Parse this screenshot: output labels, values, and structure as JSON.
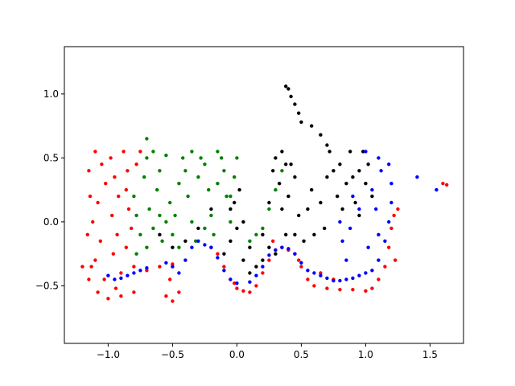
{
  "chart_data": {
    "type": "scatter",
    "title": "",
    "xlabel": "",
    "ylabel": "",
    "xlim": [
      -1.34,
      1.76
    ],
    "ylim": [
      -0.95,
      1.37
    ],
    "x_ticks": [
      -1.0,
      -0.5,
      0.0,
      0.5,
      1.0,
      1.5
    ],
    "x_tick_labels": [
      "−1.0",
      "−0.5",
      "0.0",
      "0.5",
      "1.0",
      "1.5"
    ],
    "y_ticks": [
      -0.5,
      0.0,
      0.5,
      1.0
    ],
    "y_tick_labels": [
      "−0.5",
      "0.0",
      "0.5",
      "1.0"
    ],
    "grid": false,
    "legend": "none",
    "series": [
      {
        "color": "#ff0000",
        "points": [
          [
            -1.1,
            0.55
          ],
          [
            -1.05,
            0.45
          ],
          [
            -1.02,
            0.3
          ],
          [
            -1.08,
            0.15
          ],
          [
            -1.12,
            0.0
          ],
          [
            -1.06,
            -0.15
          ],
          [
            -1.1,
            -0.3
          ],
          [
            -1.03,
            -0.45
          ],
          [
            -1.08,
            -0.55
          ],
          [
            -0.98,
            0.5
          ],
          [
            -0.95,
            0.35
          ],
          [
            -0.92,
            0.2
          ],
          [
            -0.97,
            0.05
          ],
          [
            -0.93,
            -0.1
          ],
          [
            -0.96,
            -0.25
          ],
          [
            -0.9,
            -0.4
          ],
          [
            -0.94,
            -0.52
          ],
          [
            -0.88,
            0.55
          ],
          [
            -0.85,
            0.4
          ],
          [
            -0.86,
            0.25
          ],
          [
            -0.84,
            0.1
          ],
          [
            -0.82,
            -0.05
          ],
          [
            -0.86,
            -0.2
          ],
          [
            -0.8,
            -0.35
          ],
          [
            -0.75,
            0.55
          ],
          [
            -0.78,
            0.45
          ],
          [
            -0.7,
            -0.38
          ],
          [
            -0.6,
            -0.35
          ],
          [
            -0.5,
            -0.33
          ],
          [
            -0.52,
            -0.45
          ],
          [
            -0.55,
            -0.58
          ],
          [
            -0.5,
            -0.62
          ],
          [
            -0.45,
            -0.55
          ],
          [
            -1.15,
            0.4
          ],
          [
            -1.14,
            0.2
          ],
          [
            -1.16,
            -0.1
          ],
          [
            -1.13,
            -0.35
          ],
          [
            -1.2,
            -0.35
          ],
          [
            -1.15,
            -0.45
          ],
          [
            -1.0,
            -0.6
          ],
          [
            -0.9,
            -0.58
          ],
          [
            -0.8,
            -0.55
          ],
          [
            -0.2,
            -0.2
          ],
          [
            -0.1,
            -0.35
          ],
          [
            -0.05,
            -0.45
          ],
          [
            0.0,
            -0.52
          ],
          [
            0.05,
            -0.54
          ],
          [
            0.1,
            -0.55
          ],
          [
            0.15,
            -0.5
          ],
          [
            0.2,
            -0.4
          ],
          [
            0.25,
            -0.3
          ],
          [
            0.3,
            -0.22
          ],
          [
            0.35,
            -0.2
          ],
          [
            0.4,
            -0.22
          ],
          [
            0.45,
            -0.25
          ],
          [
            0.5,
            -0.35
          ],
          [
            0.55,
            -0.45
          ],
          [
            0.6,
            -0.5
          ],
          [
            0.7,
            -0.52
          ],
          [
            0.8,
            -0.53
          ],
          [
            0.9,
            -0.53
          ],
          [
            1.0,
            -0.54
          ],
          [
            1.05,
            -0.52
          ],
          [
            1.1,
            -0.45
          ],
          [
            1.15,
            -0.35
          ],
          [
            1.18,
            -0.2
          ],
          [
            1.2,
            -0.05
          ],
          [
            1.22,
            0.05
          ],
          [
            1.25,
            0.1
          ],
          [
            1.23,
            -0.3
          ],
          [
            0.65,
            -0.4
          ],
          [
            0.75,
            -0.45
          ],
          [
            1.6,
            0.3
          ],
          [
            1.63,
            0.29
          ],
          [
            -0.02,
            -0.48
          ],
          [
            -0.15,
            -0.25
          ],
          [
            0.28,
            -0.15
          ],
          [
            0.48,
            -0.3
          ]
        ]
      },
      {
        "color": "#008000",
        "points": [
          [
            -0.8,
            0.2
          ],
          [
            -0.78,
            0.05
          ],
          [
            -0.75,
            -0.1
          ],
          [
            -0.72,
            0.35
          ],
          [
            -0.7,
            0.5
          ],
          [
            -0.7,
            0.65
          ],
          [
            -0.68,
            0.1
          ],
          [
            -0.65,
            -0.05
          ],
          [
            -0.62,
            0.25
          ],
          [
            -0.6,
            0.4
          ],
          [
            -0.58,
            -0.15
          ],
          [
            -0.55,
            0.0
          ],
          [
            -0.52,
            0.15
          ],
          [
            -0.5,
            -0.1
          ],
          [
            -0.48,
            0.05
          ],
          [
            -0.45,
            0.3
          ],
          [
            -0.42,
            0.5
          ],
          [
            -0.4,
            0.4
          ],
          [
            -0.38,
            0.2
          ],
          [
            -0.35,
            0.0
          ],
          [
            -0.32,
            -0.15
          ],
          [
            -0.3,
            0.35
          ],
          [
            -0.28,
            0.5
          ],
          [
            -0.25,
            0.45
          ],
          [
            -0.22,
            0.25
          ],
          [
            -0.2,
            0.05
          ],
          [
            -0.18,
            -0.1
          ],
          [
            -0.15,
            0.3
          ],
          [
            -0.12,
            0.5
          ],
          [
            -0.1,
            0.4
          ],
          [
            -0.08,
            0.2
          ],
          [
            -0.05,
            0.0
          ],
          [
            -0.02,
            0.35
          ],
          [
            0.0,
            0.5
          ],
          [
            -0.65,
            0.55
          ],
          [
            -0.55,
            0.52
          ],
          [
            -0.35,
            0.55
          ],
          [
            -0.15,
            0.55
          ],
          [
            0.1,
            -0.15
          ],
          [
            0.15,
            -0.1
          ],
          [
            0.2,
            -0.05
          ],
          [
            0.25,
            0.1
          ],
          [
            0.3,
            0.25
          ],
          [
            0.35,
            0.4
          ],
          [
            -0.78,
            -0.25
          ],
          [
            -0.7,
            -0.2
          ],
          [
            -0.6,
            0.05
          ],
          [
            -0.45,
            -0.2
          ],
          [
            -0.25,
            -0.05
          ],
          [
            -0.05,
            0.2
          ]
        ]
      },
      {
        "color": "#000000",
        "points": [
          [
            0.38,
            1.06
          ],
          [
            0.4,
            1.04
          ],
          [
            0.42,
            0.98
          ],
          [
            0.45,
            0.92
          ],
          [
            0.48,
            0.85
          ],
          [
            0.5,
            0.78
          ],
          [
            0.58,
            0.75
          ],
          [
            0.65,
            0.68
          ],
          [
            0.7,
            0.6
          ],
          [
            -0.1,
            -0.25
          ],
          [
            -0.05,
            -0.15
          ],
          [
            0.0,
            -0.05
          ],
          [
            -0.02,
            0.15
          ],
          [
            0.02,
            0.25
          ],
          [
            0.05,
            -0.3
          ],
          [
            0.1,
            -0.4
          ],
          [
            0.15,
            -0.35
          ],
          [
            0.2,
            -0.1
          ],
          [
            0.25,
            0.15
          ],
          [
            0.28,
            0.4
          ],
          [
            0.3,
            0.5
          ],
          [
            0.33,
            0.3
          ],
          [
            0.35,
            0.1
          ],
          [
            0.38,
            -0.1
          ],
          [
            0.4,
            0.2
          ],
          [
            0.42,
            0.45
          ],
          [
            0.45,
            0.35
          ],
          [
            0.48,
            0.05
          ],
          [
            0.52,
            -0.15
          ],
          [
            0.55,
            0.1
          ],
          [
            0.6,
            -0.1
          ],
          [
            0.65,
            0.15
          ],
          [
            0.7,
            0.35
          ],
          [
            0.72,
            0.55
          ],
          [
            0.75,
            0.4
          ],
          [
            0.78,
            0.2
          ],
          [
            0.8,
            0.45
          ],
          [
            0.85,
            0.3
          ],
          [
            0.88,
            0.55
          ],
          [
            0.9,
            0.35
          ],
          [
            0.92,
            0.15
          ],
          [
            0.95,
            0.4
          ],
          [
            0.98,
            0.55
          ],
          [
            1.0,
            0.3
          ],
          [
            1.05,
            0.2
          ],
          [
            0.3,
            -0.25
          ],
          [
            0.2,
            -0.3
          ],
          [
            -0.2,
            0.1
          ],
          [
            -0.3,
            -0.05
          ],
          [
            -0.4,
            -0.15
          ],
          [
            -0.5,
            -0.2
          ],
          [
            -0.6,
            -0.1
          ],
          [
            0.35,
            0.55
          ],
          [
            0.25,
            -0.2
          ],
          [
            0.45,
            -0.1
          ],
          [
            0.58,
            0.25
          ],
          [
            0.68,
            -0.05
          ],
          [
            0.82,
            0.1
          ],
          [
            0.95,
            0.05
          ],
          [
            1.02,
            0.45
          ],
          [
            0.1,
            -0.2
          ],
          [
            0.05,
            0.0
          ],
          [
            -0.05,
            0.1
          ],
          [
            0.38,
            0.45
          ]
        ]
      },
      {
        "color": "#0000ff",
        "points": [
          [
            -1.0,
            -0.42
          ],
          [
            -0.95,
            -0.45
          ],
          [
            -0.9,
            -0.44
          ],
          [
            -0.85,
            -0.42
          ],
          [
            -0.8,
            -0.4
          ],
          [
            -0.75,
            -0.38
          ],
          [
            -0.7,
            -0.36
          ],
          [
            -0.55,
            -0.32
          ],
          [
            -0.5,
            -0.35
          ],
          [
            -0.45,
            -0.4
          ],
          [
            -0.4,
            -0.3
          ],
          [
            -0.35,
            -0.2
          ],
          [
            -0.3,
            -0.15
          ],
          [
            -0.25,
            -0.18
          ],
          [
            -0.2,
            -0.2
          ],
          [
            -0.15,
            -0.28
          ],
          [
            -0.1,
            -0.38
          ],
          [
            -0.05,
            -0.45
          ],
          [
            0.0,
            -0.48
          ],
          [
            0.1,
            -0.47
          ],
          [
            0.15,
            -0.42
          ],
          [
            0.2,
            -0.35
          ],
          [
            0.25,
            -0.26
          ],
          [
            0.3,
            -0.22
          ],
          [
            0.35,
            -0.2
          ],
          [
            0.4,
            -0.21
          ],
          [
            0.45,
            -0.25
          ],
          [
            0.5,
            -0.32
          ],
          [
            0.55,
            -0.38
          ],
          [
            0.6,
            -0.4
          ],
          [
            0.65,
            -0.42
          ],
          [
            0.7,
            -0.44
          ],
          [
            0.75,
            -0.46
          ],
          [
            0.8,
            -0.46
          ],
          [
            0.85,
            -0.45
          ],
          [
            0.9,
            -0.44
          ],
          [
            0.95,
            -0.42
          ],
          [
            1.0,
            -0.4
          ],
          [
            1.05,
            -0.38
          ],
          [
            1.1,
            -0.3
          ],
          [
            1.15,
            -0.15
          ],
          [
            1.18,
            0.0
          ],
          [
            1.2,
            0.15
          ],
          [
            1.2,
            0.3
          ],
          [
            1.18,
            0.45
          ],
          [
            1.1,
            0.5
          ],
          [
            1.0,
            0.55
          ],
          [
            0.8,
            0.0
          ],
          [
            0.82,
            -0.15
          ],
          [
            0.85,
            -0.3
          ],
          [
            0.9,
            0.2
          ],
          [
            1.05,
            0.25
          ],
          [
            1.08,
            0.1
          ],
          [
            1.1,
            -0.1
          ],
          [
            1.12,
            0.4
          ],
          [
            1.02,
            -0.2
          ],
          [
            0.95,
            0.1
          ],
          [
            0.88,
            -0.05
          ],
          [
            1.4,
            0.35
          ],
          [
            1.55,
            0.25
          ]
        ]
      }
    ]
  }
}
